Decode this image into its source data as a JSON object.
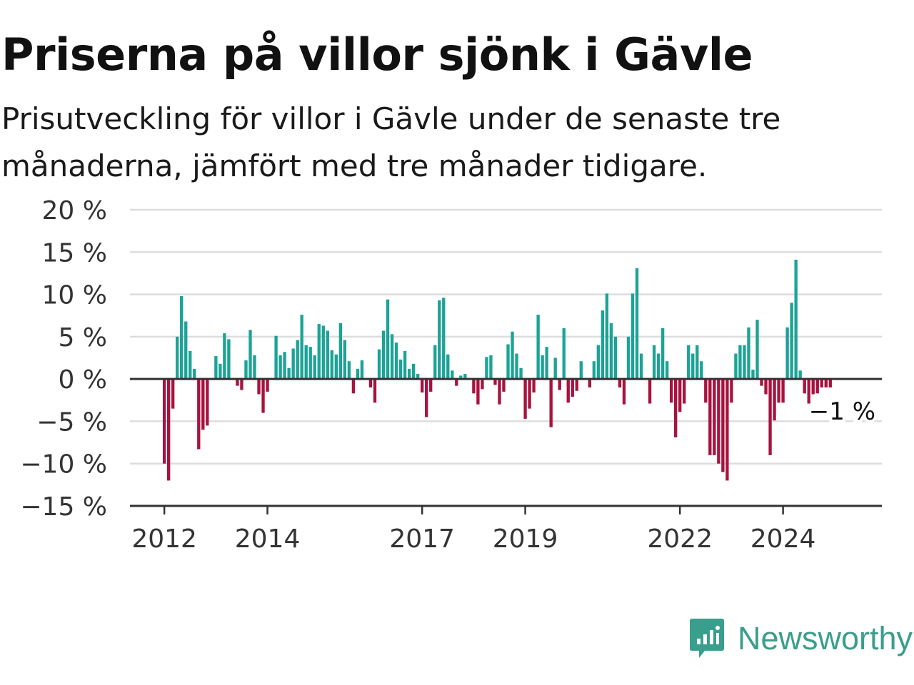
{
  "title": "Priserna på villor sjönk i Gävle",
  "subtitle": "Prisutveckling för villor i Gävle under de senaste tre månaderna, jämfört med tre månader tidigare.",
  "brand": {
    "name": "Newsworthy",
    "icon": "newsworthy-logo-icon"
  },
  "colors": {
    "positive": "#1ba396",
    "negative": "#a8123e",
    "grid": "#dddddd",
    "axis": "#333333",
    "brand": "#3a9e8c"
  },
  "chart_data": {
    "type": "bar",
    "title": "Priserna på villor sjönk i Gävle",
    "subtitle": "Prisutveckling för villor i Gävle under de senaste tre månaderna, jämfört med tre månader tidigare.",
    "xlabel": "",
    "ylabel": "",
    "ylim": [
      -15,
      20
    ],
    "yticks": [
      20,
      15,
      10,
      5,
      0,
      -5,
      -10,
      -15
    ],
    "ytick_labels": [
      "20 %",
      "15 %",
      "10 %",
      "5 %",
      "0 %",
      "−5 %",
      "−10 %",
      "−15 %"
    ],
    "xticks": [
      {
        "label": "2012",
        "date": "2012-01"
      },
      {
        "label": "2014",
        "date": "2014-01"
      },
      {
        "label": "2017",
        "date": "2017-01"
      },
      {
        "label": "2019",
        "date": "2019-01"
      },
      {
        "label": "2022",
        "date": "2022-01"
      },
      {
        "label": "2024",
        "date": "2024-01"
      }
    ],
    "x_range": [
      "2011-05",
      "2025-12"
    ],
    "grid": true,
    "legend": "none",
    "annotation": {
      "text": "−1 %",
      "date": "2024-12",
      "value": -1
    },
    "x": [
      "2012-01",
      "2012-02",
      "2012-03",
      "2012-04",
      "2012-05",
      "2012-06",
      "2012-07",
      "2012-08",
      "2012-09",
      "2012-10",
      "2012-11",
      "2012-12",
      "2013-01",
      "2013-02",
      "2013-03",
      "2013-04",
      "2013-05",
      "2013-06",
      "2013-07",
      "2013-08",
      "2013-09",
      "2013-10",
      "2013-11",
      "2013-12",
      "2014-01",
      "2014-02",
      "2014-03",
      "2014-04",
      "2014-05",
      "2014-06",
      "2014-07",
      "2014-08",
      "2014-09",
      "2014-10",
      "2014-11",
      "2014-12",
      "2015-01",
      "2015-02",
      "2015-03",
      "2015-04",
      "2015-05",
      "2015-06",
      "2015-07",
      "2015-08",
      "2015-09",
      "2015-10",
      "2015-11",
      "2015-12",
      "2016-01",
      "2016-02",
      "2016-03",
      "2016-04",
      "2016-05",
      "2016-06",
      "2016-07",
      "2016-08",
      "2016-09",
      "2016-10",
      "2016-11",
      "2016-12",
      "2017-01",
      "2017-02",
      "2017-03",
      "2017-04",
      "2017-05",
      "2017-06",
      "2017-07",
      "2017-08",
      "2017-09",
      "2017-10",
      "2017-11",
      "2017-12",
      "2018-01",
      "2018-02",
      "2018-03",
      "2018-04",
      "2018-05",
      "2018-06",
      "2018-07",
      "2018-08",
      "2018-09",
      "2018-10",
      "2018-11",
      "2018-12",
      "2019-01",
      "2019-02",
      "2019-03",
      "2019-04",
      "2019-05",
      "2019-06",
      "2019-07",
      "2019-08",
      "2019-09",
      "2019-10",
      "2019-11",
      "2019-12",
      "2020-01",
      "2020-02",
      "2020-03",
      "2020-04",
      "2020-05",
      "2020-06",
      "2020-07",
      "2020-08",
      "2020-09",
      "2020-10",
      "2020-11",
      "2020-12",
      "2021-01",
      "2021-02",
      "2021-03",
      "2021-04",
      "2021-05",
      "2021-06",
      "2021-07",
      "2021-08",
      "2021-09",
      "2021-10",
      "2021-11",
      "2021-12",
      "2022-01",
      "2022-02",
      "2022-03",
      "2022-04",
      "2022-05",
      "2022-06",
      "2022-07",
      "2022-08",
      "2022-09",
      "2022-10",
      "2022-11",
      "2022-12",
      "2023-01",
      "2023-02",
      "2023-03",
      "2023-04",
      "2023-05",
      "2023-06",
      "2023-07",
      "2023-08",
      "2023-09",
      "2023-10",
      "2023-11",
      "2023-12",
      "2024-01",
      "2024-02",
      "2024-03",
      "2024-04",
      "2024-05",
      "2024-06",
      "2024-07",
      "2024-08",
      "2024-09",
      "2024-10",
      "2024-11",
      "2024-12"
    ],
    "values": [
      -10,
      -12,
      -3.5,
      5,
      9.8,
      6.8,
      3.3,
      1.2,
      -8.3,
      -6,
      -5.5,
      null,
      2.7,
      1.8,
      5.4,
      4.7,
      null,
      -0.8,
      -1.3,
      2.2,
      5.8,
      2.8,
      -1.8,
      -4,
      -1.5,
      null,
      5.1,
      2.8,
      3.2,
      1.3,
      3.6,
      4.6,
      7.6,
      4,
      3.8,
      2.8,
      6.5,
      6.3,
      5.7,
      3.4,
      2.9,
      6.6,
      4.6,
      2.1,
      -1.7,
      1.2,
      2.2,
      null,
      -1,
      -2.8,
      3.5,
      5.7,
      9.4,
      5.3,
      4.3,
      2.3,
      3.3,
      1.2,
      1.8,
      0.6,
      -1.6,
      -4.5,
      -1.5,
      4,
      9.3,
      9.6,
      2.9,
      1,
      -0.8,
      0.4,
      0.6,
      null,
      -1.7,
      -3,
      -1.2,
      2.6,
      2.8,
      -0.7,
      -3,
      -1.5,
      4.1,
      5.6,
      3,
      1.3,
      -4.7,
      -3.5,
      -1.6,
      7.6,
      2.8,
      3.8,
      -5.7,
      2.5,
      -1.3,
      6,
      -2.8,
      -2.1,
      -1.4,
      2.1,
      null,
      -1,
      2.1,
      4,
      8.1,
      10.1,
      6.6,
      5,
      -1,
      -3,
      5,
      10.1,
      13.1,
      3,
      null,
      -2.9,
      4,
      3,
      6,
      2.1,
      -2.8,
      -6.9,
      -3.9,
      -2.9,
      4,
      3,
      4,
      2.1,
      -2.8,
      -9,
      -9,
      -10,
      -11,
      -12,
      -2.8,
      3,
      4,
      4,
      6.1,
      1.1,
      7,
      -0.8,
      -1.8,
      -9,
      -4.9,
      -2.8,
      -2.8,
      6.1,
      9,
      14.1,
      1,
      -1.7,
      -2.9,
      -1.8,
      -1.7,
      -1,
      -1,
      -1
    ]
  }
}
